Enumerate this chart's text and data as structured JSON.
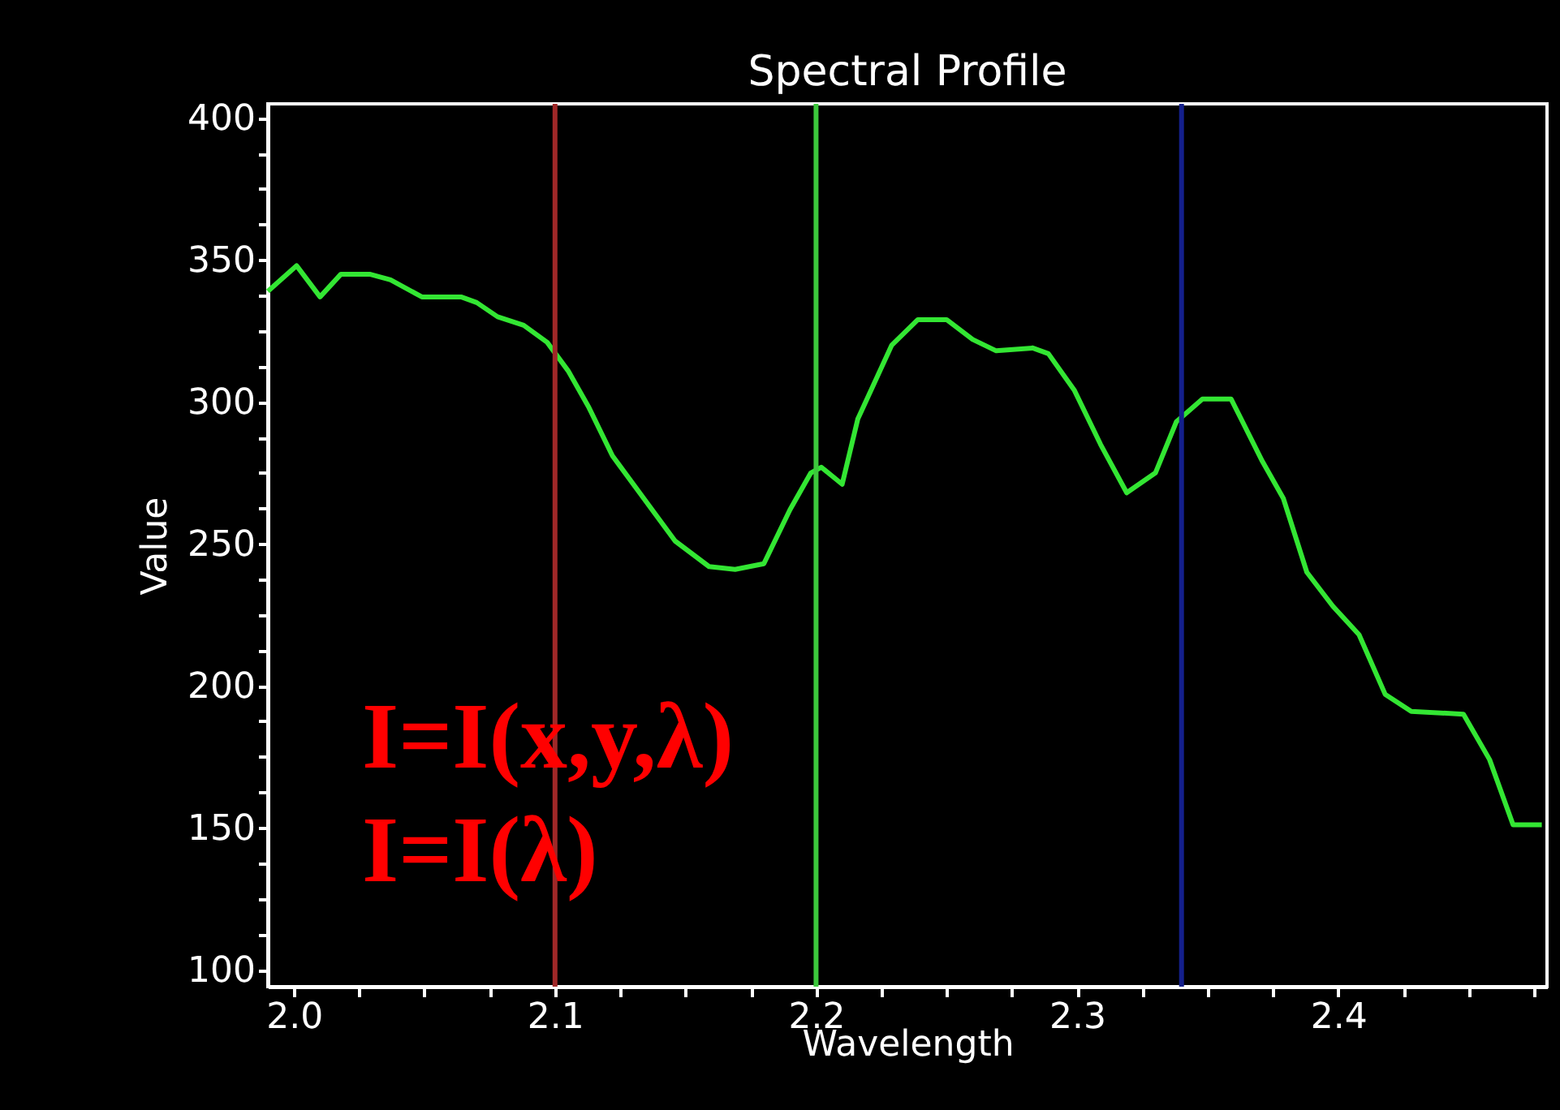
{
  "chart_data": {
    "type": "line",
    "title": "Spectral Profile",
    "xlabel": "Wavelength",
    "ylabel": "Value",
    "xlim": [
      1.99,
      2.48
    ],
    "ylim": [
      94,
      405
    ],
    "xticks": [
      {
        "value": 2.0,
        "label": "2.0"
      },
      {
        "value": 2.025,
        "label": null
      },
      {
        "value": 2.05,
        "label": null
      },
      {
        "value": 2.075,
        "label": null
      },
      2.1,
      {
        "value": 2.125,
        "label": null
      },
      {
        "value": 2.15,
        "label": null
      },
      {
        "value": 2.175,
        "label": null
      },
      2.2,
      {
        "value": 2.225,
        "label": null
      },
      {
        "value": 2.25,
        "label": null
      },
      {
        "value": 2.275,
        "label": null
      },
      2.3,
      {
        "value": 2.325,
        "label": null
      },
      {
        "value": 2.35,
        "label": null
      },
      {
        "value": 2.375,
        "label": null
      },
      2.4,
      {
        "value": 2.425,
        "label": null
      },
      {
        "value": 2.45,
        "label": null
      },
      {
        "value": 2.475,
        "label": null
      }
    ],
    "yticks": [
      100,
      {
        "value": 112.5,
        "label": null
      },
      {
        "value": 125,
        "label": null
      },
      {
        "value": 137.5,
        "label": null
      },
      150,
      {
        "value": 162.5,
        "label": null
      },
      {
        "value": 175,
        "label": null
      },
      {
        "value": 187.5,
        "label": null
      },
      200,
      {
        "value": 212.5,
        "label": null
      },
      {
        "value": 225,
        "label": null
      },
      {
        "value": 237.5,
        "label": null
      },
      250,
      {
        "value": 262.5,
        "label": null
      },
      {
        "value": 275,
        "label": null
      },
      {
        "value": 287.5,
        "label": null
      },
      300,
      {
        "value": 312.5,
        "label": null
      },
      {
        "value": 325,
        "label": null
      },
      {
        "value": 337.5,
        "label": null
      },
      350,
      {
        "value": 362.5,
        "label": null
      },
      {
        "value": 375,
        "label": null
      },
      {
        "value": 387.5,
        "label": null
      },
      400
    ],
    "x": [
      1.99,
      2.001,
      2.01,
      2.018,
      2.029,
      2.037,
      2.049,
      2.064,
      2.07,
      2.078,
      2.088,
      2.097,
      2.105,
      2.113,
      2.122,
      2.134,
      2.146,
      2.159,
      2.169,
      2.18,
      2.19,
      2.198,
      2.202,
      2.21,
      2.216,
      2.229,
      2.239,
      2.25,
      2.26,
      2.269,
      2.283,
      2.289,
      2.299,
      2.309,
      2.319,
      2.33,
      2.338,
      2.348,
      2.359,
      2.371,
      2.379,
      2.388,
      2.398,
      2.408,
      2.418,
      2.428,
      2.448,
      2.458,
      2.467,
      2.478
    ],
    "series": [
      {
        "color": "#33e633",
        "values": [
          339,
          348,
          337,
          345,
          345,
          343,
          337,
          337,
          335,
          330,
          327,
          321,
          311,
          298,
          281,
          266,
          251,
          242,
          241,
          243,
          262,
          275,
          277,
          271,
          294,
          320,
          329,
          329,
          322,
          318,
          319,
          317,
          304,
          285,
          268,
          275,
          293,
          301,
          301,
          279,
          266,
          240,
          228,
          218,
          197,
          191,
          190,
          174,
          151,
          151
        ]
      }
    ],
    "ref_lines": [
      {
        "axis": "x",
        "value": 2.1,
        "color": "#a02828"
      },
      {
        "axis": "x",
        "value": 2.2,
        "color": "#3cc83c"
      },
      {
        "axis": "x",
        "value": 2.34,
        "color": "#14208c"
      }
    ],
    "annotations": [
      "I=I(x,y,λ)",
      "I=I(λ)"
    ],
    "grid": false,
    "line_style": "solid",
    "marker": "none"
  }
}
